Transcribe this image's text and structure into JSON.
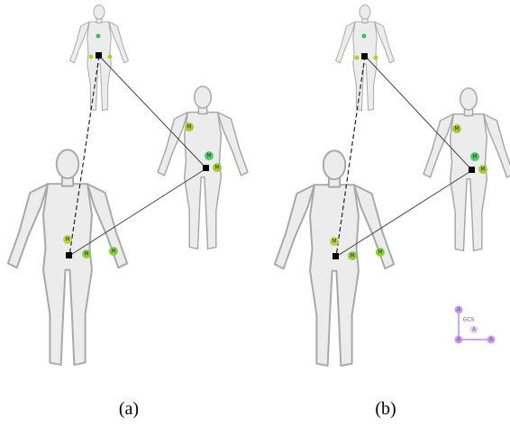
{
  "panels": [
    {
      "caption": "(a)",
      "marker_labels": [
        "M",
        "M",
        "M",
        "M",
        "M",
        "M"
      ]
    },
    {
      "caption": "(b)",
      "marker_labels": [
        "M",
        "M",
        "M",
        "M",
        "M",
        "M"
      ],
      "gcs": {
        "label": "GCS",
        "anchor_labels": [
          "A",
          "A",
          "A",
          "A"
        ]
      }
    }
  ]
}
